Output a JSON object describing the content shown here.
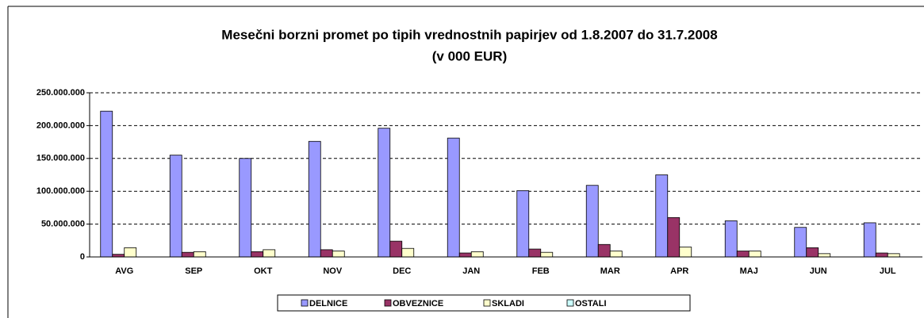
{
  "chart_data": {
    "type": "bar",
    "title": "Mesečni borzni promet po tipih vrednostnih papirjev od 1.8.2007 do 31.7.2008",
    "subtitle": "(v 000 EUR)",
    "categories": [
      "AVG",
      "SEP",
      "OKT",
      "NOV",
      "DEC",
      "JAN",
      "FEB",
      "MAR",
      "APR",
      "MAJ",
      "JUN",
      "JUL"
    ],
    "series": [
      {
        "name": "DELNICE",
        "color": "#9999ff",
        "values": [
          222000000,
          155000000,
          150000000,
          176000000,
          196000000,
          181000000,
          101000000,
          109000000,
          125000000,
          55000000,
          45000000,
          52000000
        ]
      },
      {
        "name": "OBVEZNICE",
        "color": "#993366",
        "values": [
          4000000,
          7000000,
          8000000,
          11000000,
          24000000,
          6000000,
          12000000,
          19000000,
          60000000,
          9000000,
          14000000,
          6000000
        ]
      },
      {
        "name": "SKLADI",
        "color": "#ffffcc",
        "values": [
          14000000,
          8000000,
          11000000,
          9000000,
          13000000,
          8000000,
          7000000,
          9000000,
          15000000,
          9000000,
          5000000,
          5000000
        ]
      },
      {
        "name": "OSTALI",
        "color": "#ccffff",
        "values": [
          0,
          0,
          0,
          0,
          0,
          0,
          0,
          0,
          0,
          0,
          0,
          0
        ]
      }
    ],
    "ylim": [
      0,
      250000000
    ],
    "yticks": [
      0,
      {
        "value": 50000000,
        "label": "50.000.000"
      },
      {
        "value": 100000000,
        "label": "100.000.000"
      },
      {
        "value": 150000000,
        "label": "150.000.000"
      },
      {
        "value": 200000000,
        "label": "200.000.000"
      },
      {
        "value": 250000000,
        "label": "250.000.000"
      }
    ],
    "grid": true,
    "legend": "bottom"
  }
}
